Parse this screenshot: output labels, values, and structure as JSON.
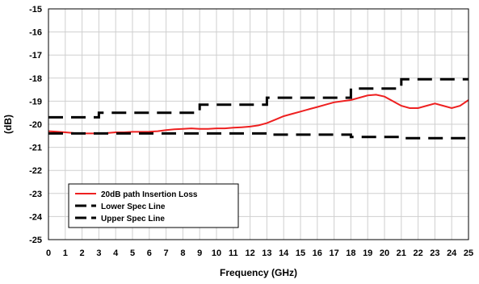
{
  "chart_data": {
    "type": "line",
    "title": "",
    "xlabel": "Frequency (GHz)",
    "ylabel": "(dB)",
    "xlim": [
      0,
      25
    ],
    "ylim": [
      -25,
      -15
    ],
    "xticks": [
      "0",
      "1",
      "2",
      "3",
      "4",
      "5",
      "6",
      "7",
      "8",
      "9",
      "10",
      "11",
      "12",
      "13",
      "14",
      "15",
      "16",
      "17",
      "18",
      "19",
      "20",
      "21",
      "22",
      "23",
      "24",
      "25"
    ],
    "yticks": [
      "-15",
      "-16",
      "-17",
      "-18",
      "-19",
      "-20",
      "-21",
      "-22",
      "-23",
      "-24",
      "-25"
    ],
    "grid": true,
    "legend": "bottom-left",
    "series": [
      {
        "name": "20dB path Insertion Loss",
        "color": "#ee2020",
        "style": "solid",
        "x": [
          0,
          0.5,
          1,
          1.5,
          2,
          2.5,
          3,
          3.5,
          4,
          4.5,
          5,
          5.5,
          6,
          6.5,
          7,
          7.5,
          8,
          8.5,
          9,
          9.5,
          10,
          10.5,
          11,
          11.5,
          12,
          12.5,
          13,
          13.5,
          14,
          14.5,
          15,
          15.5,
          16,
          16.5,
          17,
          17.5,
          18,
          18.5,
          19,
          19.5,
          20,
          20.5,
          21,
          21.5,
          22,
          22.5,
          23,
          23.5,
          24,
          24.5,
          25
        ],
        "y": [
          -20.3,
          -20.32,
          -20.35,
          -20.38,
          -20.4,
          -20.4,
          -20.4,
          -20.38,
          -20.35,
          -20.35,
          -20.33,
          -20.33,
          -20.32,
          -20.3,
          -20.25,
          -20.22,
          -20.2,
          -20.18,
          -20.2,
          -20.2,
          -20.18,
          -20.18,
          -20.15,
          -20.13,
          -20.1,
          -20.05,
          -19.95,
          -19.8,
          -19.65,
          -19.55,
          -19.45,
          -19.35,
          -19.25,
          -19.15,
          -19.05,
          -19.0,
          -18.95,
          -18.85,
          -18.75,
          -18.72,
          -18.8,
          -19.0,
          -19.2,
          -19.3,
          -19.3,
          -19.2,
          -19.1,
          -19.2,
          -19.3,
          -19.2,
          -18.95
        ]
      },
      {
        "name": "Lower Spec Line",
        "color": "#000000",
        "style": "dashed",
        "x": [
          0,
          3,
          3,
          9,
          9,
          13,
          13,
          18,
          18,
          21,
          21,
          25
        ],
        "y": [
          -20.4,
          -20.4,
          -20.4,
          -20.4,
          -20.4,
          -20.4,
          -20.45,
          -20.45,
          -20.55,
          -20.55,
          -20.6,
          -20.6
        ]
      },
      {
        "name": "Upper Spec Line",
        "color": "#000000",
        "style": "dashed",
        "x": [
          0,
          3,
          3,
          9,
          9,
          13,
          13,
          18,
          18,
          21,
          21,
          25
        ],
        "y": [
          -19.7,
          -19.7,
          -19.5,
          -19.5,
          -19.15,
          -19.15,
          -18.85,
          -18.85,
          -18.45,
          -18.45,
          -18.05,
          -18.05
        ]
      }
    ]
  }
}
